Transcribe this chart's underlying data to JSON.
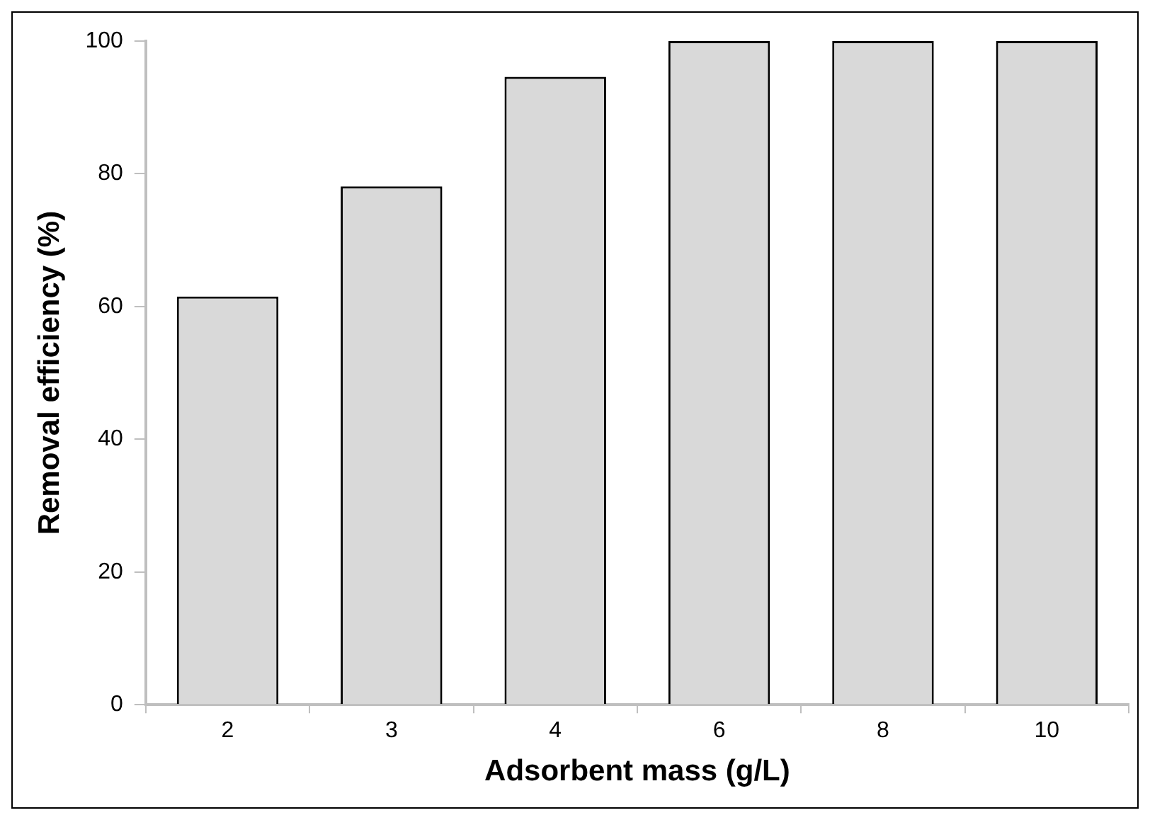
{
  "chart_data": {
    "type": "bar",
    "xlabel": "Adsorbent mass (g/L)",
    "ylabel": "Removal efficiency (%)",
    "categories": [
      "2",
      "3",
      "4",
      "6",
      "8",
      "10"
    ],
    "values": [
      61.5,
      78.1,
      94.6,
      100,
      100,
      100
    ],
    "color": "#d9d9d9",
    "ylim": [
      0,
      100
    ],
    "yticks": [
      0,
      20,
      40,
      60,
      80,
      100
    ],
    "grid": false,
    "legend": false
  }
}
